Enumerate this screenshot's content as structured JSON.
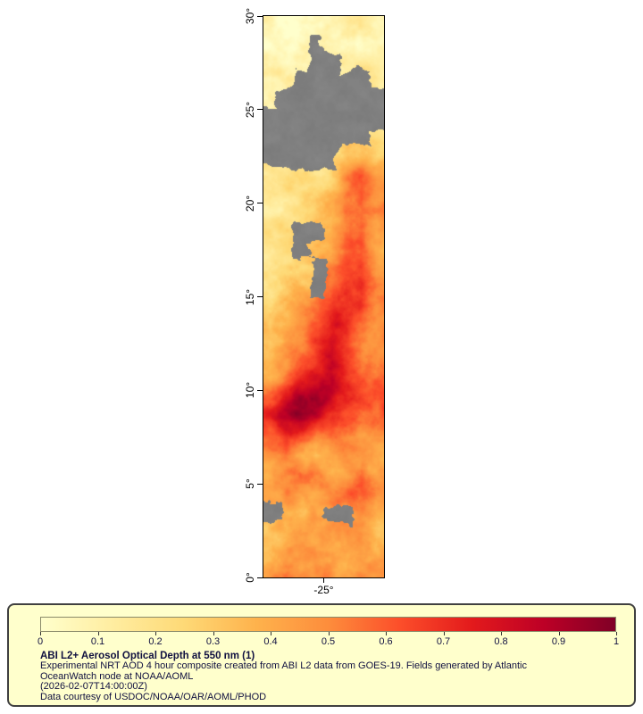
{
  "chart_data": {
    "type": "heatmap",
    "title": "ABI L2+ Aerosol Optical Depth at 550 nm (1)",
    "y_axis": {
      "range": [
        0,
        30
      ],
      "ticks": [
        {
          "value": 0,
          "label": "0°"
        },
        {
          "value": 5,
          "label": "5°"
        },
        {
          "value": 10,
          "label": "10°"
        },
        {
          "value": 15,
          "label": "15°"
        },
        {
          "value": 20,
          "label": "20°"
        },
        {
          "value": 25,
          "label": "25°"
        },
        {
          "value": 30,
          "label": "30°"
        }
      ]
    },
    "x_axis": {
      "range": [
        -28.2,
        -21.8
      ],
      "ticks": [
        {
          "value": -25,
          "label": "-25°"
        }
      ]
    },
    "colorbar": {
      "range": [
        0,
        1
      ],
      "tick_labels": [
        "0",
        "0.1",
        "0.2",
        "0.3",
        "0.4",
        "0.5",
        "0.6",
        "0.7",
        "0.8",
        "0.9",
        "1"
      ]
    },
    "colormap": {
      "missing_color": "#808080",
      "stops": [
        {
          "t": 0,
          "color": "#ffffcc"
        },
        {
          "t": 0.125,
          "color": "#ffeda0"
        },
        {
          "t": 0.25,
          "color": "#fed976"
        },
        {
          "t": 0.375,
          "color": "#feb24c"
        },
        {
          "t": 0.5,
          "color": "#fd8d3c"
        },
        {
          "t": 0.625,
          "color": "#fc4e2a"
        },
        {
          "t": 0.75,
          "color": "#e31a1c"
        },
        {
          "t": 0.875,
          "color": "#bd0026"
        },
        {
          "t": 1,
          "color": "#800026"
        }
      ]
    },
    "grid": {
      "note": "Estimated AOD field, 8 lon cols x 30 lat rows, row 0 = 30N-29N band, -1 = missing/cloud (gray)",
      "cols": 8,
      "rows": 30,
      "values": [
        [
          0.05,
          0.05,
          0.06,
          0.08,
          0.1,
          0.1,
          0.12,
          0.1
        ],
        [
          0.06,
          0.08,
          0.1,
          -1,
          0.1,
          0.12,
          0.12,
          0.1
        ],
        [
          0.08,
          0.1,
          0.12,
          -1,
          -1,
          0.12,
          0.15,
          0.12
        ],
        [
          0.1,
          0.12,
          -1,
          -1,
          -1,
          -1,
          -1,
          0.15
        ],
        [
          0.12,
          -1,
          -1,
          -1,
          -1,
          -1,
          -1,
          -1
        ],
        [
          -1,
          -1,
          -1,
          -1,
          -1,
          -1,
          -1,
          -1
        ],
        [
          -1,
          -1,
          -1,
          -1,
          -1,
          -1,
          -1,
          0.2
        ],
        [
          -1,
          -1,
          -1,
          -1,
          -1,
          0.25,
          0.3,
          0.3
        ],
        [
          0.15,
          0.15,
          0.18,
          0.2,
          0.3,
          0.45,
          0.55,
          0.4
        ],
        [
          0.18,
          0.2,
          0.22,
          0.28,
          0.35,
          0.5,
          0.62,
          0.45
        ],
        [
          0.18,
          0.2,
          0.25,
          0.3,
          0.35,
          0.55,
          0.65,
          0.5
        ],
        [
          0.2,
          0.25,
          -1,
          -1,
          0.3,
          0.5,
          0.6,
          0.45
        ],
        [
          0.15,
          0.2,
          -1,
          0.3,
          0.35,
          0.55,
          0.6,
          0.4
        ],
        [
          0.2,
          0.25,
          0.3,
          -1,
          0.45,
          0.6,
          0.65,
          0.5
        ],
        [
          0.2,
          0.3,
          0.35,
          -1,
          0.5,
          0.65,
          0.7,
          0.55
        ],
        [
          0.25,
          0.3,
          0.4,
          0.5,
          0.6,
          0.7,
          0.65,
          0.5
        ],
        [
          0.3,
          0.35,
          0.45,
          0.55,
          0.7,
          0.75,
          0.6,
          0.45
        ],
        [
          0.3,
          0.4,
          0.5,
          0.65,
          0.75,
          0.7,
          0.55,
          0.5
        ],
        [
          0.35,
          0.45,
          0.6,
          0.7,
          0.8,
          0.75,
          0.6,
          0.55
        ],
        [
          0.4,
          0.55,
          0.7,
          0.8,
          0.85,
          0.7,
          0.65,
          0.6
        ],
        [
          0.6,
          0.75,
          0.85,
          0.9,
          0.8,
          0.7,
          0.65,
          0.6
        ],
        [
          0.7,
          0.85,
          0.9,
          0.8,
          0.7,
          0.65,
          0.6,
          0.55
        ],
        [
          0.55,
          0.65,
          0.6,
          0.5,
          0.6,
          0.55,
          0.5,
          0.45
        ],
        [
          0.5,
          0.55,
          0.45,
          0.35,
          0.45,
          0.55,
          0.5,
          0.45
        ],
        [
          0.45,
          0.55,
          0.6,
          0.5,
          0.4,
          0.45,
          0.6,
          0.45
        ],
        [
          0.4,
          0.5,
          0.45,
          0.4,
          0.45,
          0.5,
          0.6,
          0.45
        ],
        [
          -1,
          0.4,
          0.35,
          0.4,
          -1,
          -1,
          0.5,
          0.4
        ],
        [
          0.35,
          0.4,
          0.45,
          0.4,
          0.45,
          0.5,
          0.45,
          0.35
        ],
        [
          0.4,
          0.45,
          0.5,
          0.45,
          0.4,
          0.45,
          0.5,
          0.4
        ],
        [
          0.45,
          0.5,
          0.45,
          0.5,
          0.45,
          0.4,
          0.45,
          0.5
        ]
      ]
    }
  },
  "legend": {
    "title": "ABI L2+ Aerosol Optical Depth at 550 nm (1)",
    "subtitle_line1": "Experimental NRT AOD 4 hour composite created from ABI L2 data from GOES-19. Fields generated by Atlantic",
    "subtitle_line2": "OceanWatch node at NOAA/AOML",
    "timestamp": "(2026-02-07T14:00:00Z)",
    "credit": "Data courtesy of USDOC/NOAA/OAR/AOML/PHOD"
  }
}
